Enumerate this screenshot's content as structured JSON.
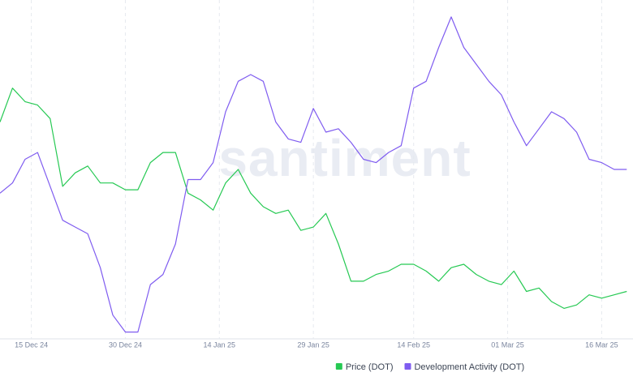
{
  "chart_data": {
    "type": "line",
    "watermark": "santiment",
    "x": [
      "2024-12-10",
      "2024-12-12",
      "2024-12-14",
      "2024-12-16",
      "2024-12-18",
      "2024-12-20",
      "2024-12-22",
      "2024-12-24",
      "2024-12-26",
      "2024-12-28",
      "2024-12-30",
      "2025-01-01",
      "2025-01-03",
      "2025-01-05",
      "2025-01-07",
      "2025-01-09",
      "2025-01-11",
      "2025-01-13",
      "2025-01-15",
      "2025-01-17",
      "2025-01-19",
      "2025-01-21",
      "2025-01-23",
      "2025-01-25",
      "2025-01-27",
      "2025-01-29",
      "2025-01-31",
      "2025-02-02",
      "2025-02-04",
      "2025-02-06",
      "2025-02-08",
      "2025-02-10",
      "2025-02-12",
      "2025-02-14",
      "2025-02-16",
      "2025-02-18",
      "2025-02-20",
      "2025-02-22",
      "2025-02-24",
      "2025-02-26",
      "2025-02-28",
      "2025-03-02",
      "2025-03-04",
      "2025-03-06",
      "2025-03-08",
      "2025-03-10",
      "2025-03-12",
      "2025-03-14",
      "2025-03-16",
      "2025-03-18",
      "2025-03-20"
    ],
    "xlim": [
      "2024-12-10",
      "2025-03-21"
    ],
    "xticks": [
      {
        "value": "2024-12-15",
        "label": "15 Dec 24"
      },
      {
        "value": "2024-12-30",
        "label": "30 Dec 24"
      },
      {
        "value": "2025-01-14",
        "label": "14 Jan 25"
      },
      {
        "value": "2025-01-29",
        "label": "29 Jan 25"
      },
      {
        "value": "2025-02-14",
        "label": "14 Feb 25"
      },
      {
        "value": "2025-03-01",
        "label": "01 Mar 25"
      },
      {
        "value": "2025-03-16",
        "label": "16 Mar 25"
      }
    ],
    "ylim": [
      0,
      100
    ],
    "y2lim": [
      0,
      100
    ],
    "grid": true,
    "series": [
      {
        "name": "Price (DOT)",
        "color": "#26c953",
        "values": [
          64,
          74,
          70,
          69,
          65,
          45,
          49,
          51,
          46,
          46,
          44,
          44,
          52,
          55,
          55,
          43,
          41,
          38,
          46,
          50,
          43,
          39,
          37,
          38,
          32,
          33,
          37,
          28,
          17,
          17,
          19,
          20,
          22,
          22,
          20,
          17,
          21,
          22,
          19,
          17,
          16,
          20,
          14,
          15,
          11,
          9,
          10,
          13,
          12,
          13,
          14
        ]
      },
      {
        "name": "Development Activity (DOT)",
        "color": "#7f5cf0",
        "axis": "y2",
        "values": [
          43,
          46,
          53,
          55,
          45,
          35,
          33,
          31,
          21,
          7,
          2,
          2,
          16,
          19,
          28,
          47,
          47,
          52,
          67,
          76,
          78,
          76,
          64,
          59,
          58,
          68,
          61,
          62,
          58,
          53,
          52,
          55,
          57,
          74,
          76,
          86,
          95,
          86,
          81,
          76,
          72,
          64,
          57,
          62,
          67,
          65,
          61,
          53,
          52,
          50,
          50
        ]
      }
    ]
  }
}
